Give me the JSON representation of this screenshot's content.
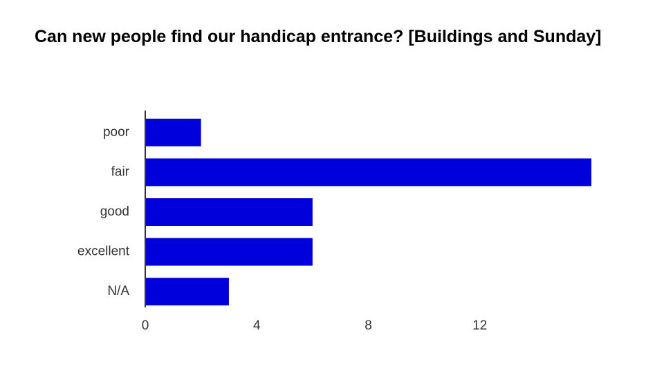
{
  "chart_data": {
    "type": "hbar",
    "title": "Can new people find our handicap entrance? [Buildings and Sunday]",
    "categories": [
      "poor",
      "fair",
      "good",
      "excellent",
      "N/A"
    ],
    "values": [
      2,
      16,
      6,
      6,
      3
    ],
    "color": "#0000dd",
    "xlim": [
      0,
      16
    ],
    "xticks": [
      0,
      4,
      8,
      12
    ]
  }
}
